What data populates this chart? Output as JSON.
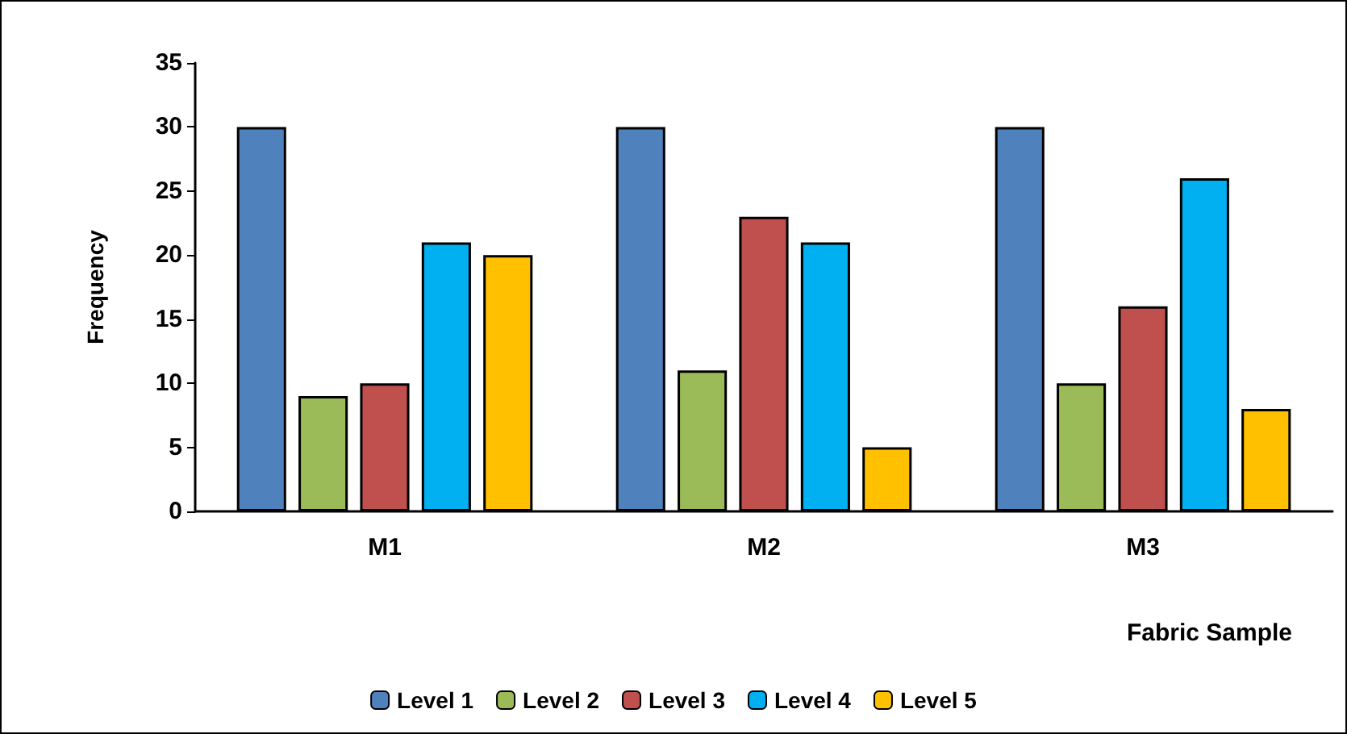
{
  "chart_data": {
    "type": "bar",
    "xlabel": "Fabric Sample",
    "ylabel": "Frequency",
    "categories": [
      "M1",
      "M2",
      "M3"
    ],
    "series": [
      {
        "name": "Level 1",
        "color": "#4f81bd",
        "values": [
          30,
          30,
          30
        ]
      },
      {
        "name": "Level 2",
        "color": "#9bbb59",
        "values": [
          9,
          11,
          10
        ]
      },
      {
        "name": "Level 3",
        "color": "#c0504d",
        "values": [
          10,
          23,
          16
        ]
      },
      {
        "name": "Level 4",
        "color": "#00b0f0",
        "values": [
          21,
          21,
          26
        ]
      },
      {
        "name": "Level 5",
        "color": "#ffc000",
        "values": [
          20,
          5,
          8
        ]
      }
    ],
    "ylim": [
      0,
      35
    ],
    "yticks": [
      0,
      5,
      10,
      15,
      20,
      25,
      30,
      35
    ],
    "grid": false,
    "legend": "bottom"
  }
}
